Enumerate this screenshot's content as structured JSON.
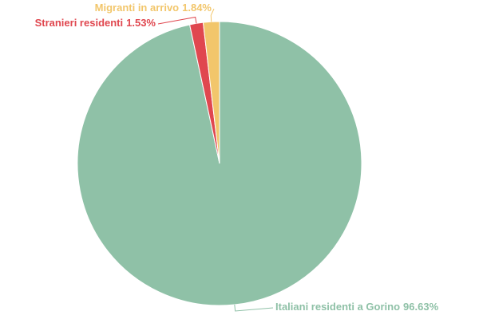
{
  "chart_data": {
    "type": "pie",
    "categories": [
      "Italiani residenti a Gorino",
      "Stranieri residenti",
      "Migranti in arrivo"
    ],
    "values": [
      96.63,
      1.53,
      1.84
    ],
    "value_labels": [
      "96.63%",
      "1.53%",
      "1.84%"
    ],
    "colors": [
      "#8fc1a7",
      "#e0474f",
      "#f2c66b"
    ]
  }
}
